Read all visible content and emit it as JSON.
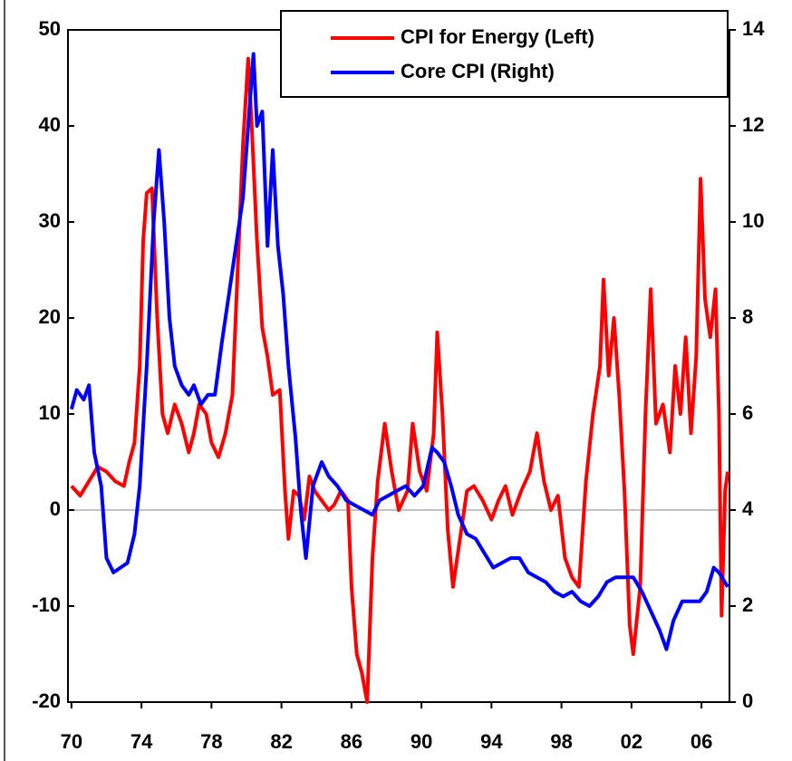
{
  "chart_data": {
    "type": "line",
    "xlim": [
      1969.8,
      2007.6
    ],
    "xticks": [
      {
        "value": 1970,
        "label": "70"
      },
      {
        "value": 1974,
        "label": "74"
      },
      {
        "value": 1978,
        "label": "78"
      },
      {
        "value": 1982,
        "label": "82"
      },
      {
        "value": 1986,
        "label": "86"
      },
      {
        "value": 1990,
        "label": "90"
      },
      {
        "value": 1994,
        "label": "94"
      },
      {
        "value": 1998,
        "label": "98"
      },
      {
        "value": 2002,
        "label": "02"
      },
      {
        "value": 2006,
        "label": "06"
      }
    ],
    "ylim": [
      -20,
      50
    ],
    "yticks": [
      -20,
      -10,
      0,
      10,
      20,
      30,
      40,
      50
    ],
    "y2lim": [
      0,
      14
    ],
    "y2ticks": [
      0,
      2,
      4,
      6,
      8,
      10,
      12,
      14
    ],
    "legend": "upper right",
    "series": [
      {
        "name": "CPI for Energy (Left)",
        "color": "#ff0000",
        "axis": "y",
        "x": [
          1970,
          1970.5,
          1971,
          1971.5,
          1972,
          1972.5,
          1973,
          1973.3,
          1973.6,
          1973.9,
          1974.1,
          1974.3,
          1974.6,
          1974.9,
          1975.2,
          1975.5,
          1975.9,
          1976.3,
          1976.7,
          1977,
          1977.3,
          1977.7,
          1978,
          1978.4,
          1978.8,
          1979.2,
          1979.5,
          1979.8,
          1980.1,
          1980.3,
          1980.6,
          1980.9,
          1981.2,
          1981.5,
          1981.9,
          1982.2,
          1982.4,
          1982.7,
          1983,
          1983.3,
          1983.6,
          1983.9,
          1984.3,
          1984.7,
          1985,
          1985.4,
          1985.8,
          1986,
          1986.3,
          1986.6,
          1986.9,
          1987.2,
          1987.5,
          1987.9,
          1988.3,
          1988.7,
          1989.2,
          1989.5,
          1989.9,
          1990.3,
          1990.7,
          1990.9,
          1991.2,
          1991.5,
          1991.8,
          1992.2,
          1992.6,
          1993,
          1993.5,
          1994,
          1994.4,
          1994.8,
          1995.2,
          1995.7,
          1996.2,
          1996.6,
          1997,
          1997.4,
          1997.8,
          1998.2,
          1998.6,
          1999,
          1999.4,
          1999.8,
          2000.2,
          2000.4,
          2000.7,
          2001,
          2001.3,
          2001.6,
          2001.9,
          2002.1,
          2002.5,
          2002.8,
          2003.1,
          2003.4,
          2003.8,
          2004.2,
          2004.5,
          2004.8,
          2005.1,
          2005.4,
          2005.7,
          2005.95,
          2006.2,
          2006.5,
          2006.8,
          2007,
          2007.15,
          2007.35,
          2007.5
        ],
        "values": [
          2.5,
          1.5,
          3,
          4.5,
          4,
          3,
          2.5,
          5,
          7,
          15,
          28,
          33,
          33.5,
          20,
          10,
          8,
          11,
          9,
          6,
          8,
          11,
          10,
          7,
          5.5,
          8,
          12,
          25,
          38,
          47,
          40,
          28,
          19,
          16,
          12,
          12.5,
          2,
          -3,
          2,
          1.5,
          -1,
          3.5,
          2,
          1,
          0,
          0.5,
          2,
          1,
          -8,
          -15,
          -17,
          -20,
          -5,
          3,
          9,
          4,
          0,
          2,
          9,
          4,
          2,
          8,
          18.5,
          10,
          -2,
          -8,
          -3,
          2,
          2.5,
          1,
          -1,
          1,
          2.5,
          -0.5,
          2,
          4,
          8,
          3,
          0,
          1.5,
          -5,
          -7,
          -8,
          3,
          10,
          15,
          24,
          14,
          20,
          12,
          2,
          -12,
          -15,
          -8,
          10,
          23,
          9,
          11,
          6,
          15,
          10,
          18,
          8,
          16,
          34.5,
          22,
          18,
          23,
          10,
          -11,
          2,
          4
        ]
      },
      {
        "name": "Core CPI (Right)",
        "color": "#0000ff",
        "axis": "y2",
        "x": [
          1970,
          1970.3,
          1970.7,
          1971,
          1971.3,
          1971.7,
          1972,
          1972.4,
          1972.8,
          1973.2,
          1973.6,
          1973.9,
          1974.3,
          1974.7,
          1975,
          1975.3,
          1975.6,
          1975.9,
          1976.3,
          1976.7,
          1977,
          1977.4,
          1977.8,
          1978.2,
          1978.6,
          1979,
          1979.4,
          1979.8,
          1980.1,
          1980.4,
          1980.6,
          1980.9,
          1981.2,
          1981.5,
          1981.8,
          1982.1,
          1982.4,
          1982.8,
          1983.1,
          1983.4,
          1983.8,
          1984.3,
          1984.7,
          1985.2,
          1985.7,
          1986.2,
          1986.7,
          1987.2,
          1987.6,
          1988.1,
          1988.6,
          1989.1,
          1989.6,
          1990.1,
          1990.6,
          1990.9,
          1991.3,
          1991.7,
          1992.1,
          1992.6,
          1993.1,
          1993.6,
          1994.1,
          1994.6,
          1995.1,
          1995.6,
          1996.1,
          1996.6,
          1997.1,
          1997.6,
          1998.1,
          1998.6,
          1999.1,
          1999.6,
          2000.1,
          2000.6,
          2001.1,
          2001.6,
          2002.1,
          2002.6,
          2003.1,
          2003.6,
          2004.0,
          2004.4,
          2004.9,
          2005.4,
          2005.9,
          2006.3,
          2006.7,
          2007.0,
          2007.5
        ],
        "values": [
          6.1,
          6.5,
          6.3,
          6.6,
          5.2,
          4.5,
          3,
          2.7,
          2.8,
          2.9,
          3.5,
          4.5,
          7,
          10,
          11.5,
          10,
          8,
          7,
          6.6,
          6.4,
          6.6,
          6.2,
          6.4,
          6.4,
          7.5,
          8.5,
          9.5,
          10.5,
          12,
          13.5,
          12,
          12.3,
          9.5,
          11.5,
          9.5,
          8.5,
          7,
          5.5,
          4,
          3,
          4.5,
          5,
          4.7,
          4.5,
          4.2,
          4.1,
          4,
          3.9,
          4.2,
          4.3,
          4.4,
          4.5,
          4.3,
          4.5,
          5.3,
          5.2,
          5,
          4.5,
          3.9,
          3.5,
          3.4,
          3.1,
          2.8,
          2.9,
          3,
          3,
          2.7,
          2.6,
          2.5,
          2.3,
          2.2,
          2.3,
          2.1,
          2,
          2.2,
          2.5,
          2.6,
          2.6,
          2.6,
          2.3,
          1.9,
          1.5,
          1.1,
          1.7,
          2.1,
          2.1,
          2.1,
          2.3,
          2.8,
          2.7,
          2.4
        ]
      }
    ]
  }
}
